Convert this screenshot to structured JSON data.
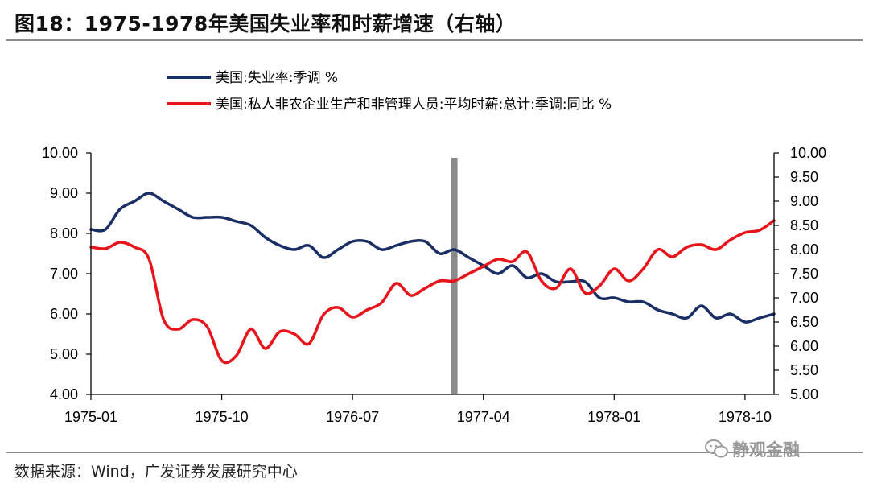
{
  "header": {
    "title": "图18：1975-1978年美国失业率和时薪增速（右轴）"
  },
  "footer": {
    "source": "数据来源：Wind，广发证券发展研究中心",
    "watermark": "静观金融"
  },
  "colors": {
    "unemployment": "#1a2e66",
    "wage": "#e8141b",
    "marker": "#8a8a8a",
    "rule": "#8c8c8c"
  },
  "chart_data": {
    "type": "line",
    "legend_position": "top-left",
    "grid": false,
    "x_tick_labels": [
      "1975-01",
      "1975-10",
      "1976-07",
      "1977-04",
      "1978-01",
      "1978-10"
    ],
    "x_range": [
      "1975-01",
      "1978-12"
    ],
    "y_left": {
      "range": [
        4.0,
        10.0
      ],
      "ticks": [
        "4.00",
        "5.00",
        "6.00",
        "7.00",
        "8.00",
        "9.00",
        "10.00"
      ]
    },
    "y_right": {
      "range": [
        5.0,
        10.0
      ],
      "ticks": [
        "5.00",
        "5.50",
        "6.00",
        "6.50",
        "7.00",
        "7.50",
        "8.00",
        "8.50",
        "9.00",
        "9.50",
        "10.00"
      ]
    },
    "vertical_marker": {
      "x": "1977-02"
    },
    "series": [
      {
        "name": "美国:失业率:季调 %",
        "axis": "left",
        "color": "#1a2e66",
        "points": [
          [
            "1975-01",
            8.1
          ],
          [
            "1975-02",
            8.1
          ],
          [
            "1975-03",
            8.6
          ],
          [
            "1975-04",
            8.8
          ],
          [
            "1975-05",
            9.0
          ],
          [
            "1975-06",
            8.8
          ],
          [
            "1975-07",
            8.6
          ],
          [
            "1975-08",
            8.4
          ],
          [
            "1975-09",
            8.4
          ],
          [
            "1975-10",
            8.4
          ],
          [
            "1975-11",
            8.3
          ],
          [
            "1975-12",
            8.2
          ],
          [
            "1976-01",
            7.9
          ],
          [
            "1976-02",
            7.7
          ],
          [
            "1976-03",
            7.6
          ],
          [
            "1976-04",
            7.7
          ],
          [
            "1976-05",
            7.4
          ],
          [
            "1976-06",
            7.6
          ],
          [
            "1976-07",
            7.8
          ],
          [
            "1976-08",
            7.8
          ],
          [
            "1976-09",
            7.6
          ],
          [
            "1976-10",
            7.7
          ],
          [
            "1976-11",
            7.8
          ],
          [
            "1976-12",
            7.8
          ],
          [
            "1977-01",
            7.5
          ],
          [
            "1977-02",
            7.6
          ],
          [
            "1977-03",
            7.4
          ],
          [
            "1977-04",
            7.2
          ],
          [
            "1977-05",
            7.0
          ],
          [
            "1977-06",
            7.2
          ],
          [
            "1977-07",
            6.9
          ],
          [
            "1977-08",
            7.0
          ],
          [
            "1977-09",
            6.8
          ],
          [
            "1977-10",
            6.8
          ],
          [
            "1977-11",
            6.8
          ],
          [
            "1977-12",
            6.4
          ],
          [
            "1978-01",
            6.4
          ],
          [
            "1978-02",
            6.3
          ],
          [
            "1978-03",
            6.3
          ],
          [
            "1978-04",
            6.1
          ],
          [
            "1978-05",
            6.0
          ],
          [
            "1978-06",
            5.9
          ],
          [
            "1978-07",
            6.2
          ],
          [
            "1978-08",
            5.9
          ],
          [
            "1978-09",
            6.0
          ],
          [
            "1978-10",
            5.8
          ],
          [
            "1978-11",
            5.9
          ],
          [
            "1978-12",
            6.0
          ]
        ]
      },
      {
        "name": "美国:私人非农企业生产和非管理人员:平均时薪:总计:季调:同比 %",
        "axis": "right",
        "color": "#e8141b",
        "points": [
          [
            "1975-01",
            8.05
          ],
          [
            "1975-02",
            8.02
          ],
          [
            "1975-03",
            8.15
          ],
          [
            "1975-04",
            8.05
          ],
          [
            "1975-05",
            7.8
          ],
          [
            "1975-06",
            6.55
          ],
          [
            "1975-07",
            6.35
          ],
          [
            "1975-08",
            6.55
          ],
          [
            "1975-09",
            6.4
          ],
          [
            "1975-10",
            5.7
          ],
          [
            "1975-11",
            5.8
          ],
          [
            "1975-12",
            6.35
          ],
          [
            "1976-01",
            5.95
          ],
          [
            "1976-02",
            6.3
          ],
          [
            "1976-03",
            6.25
          ],
          [
            "1976-04",
            6.05
          ],
          [
            "1976-05",
            6.65
          ],
          [
            "1976-06",
            6.8
          ],
          [
            "1976-07",
            6.6
          ],
          [
            "1976-08",
            6.75
          ],
          [
            "1976-09",
            6.9
          ],
          [
            "1976-10",
            7.3
          ],
          [
            "1976-11",
            7.05
          ],
          [
            "1976-12",
            7.2
          ],
          [
            "1977-01",
            7.35
          ],
          [
            "1977-02",
            7.35
          ],
          [
            "1977-03",
            7.5
          ],
          [
            "1977-04",
            7.65
          ],
          [
            "1977-05",
            7.8
          ],
          [
            "1977-06",
            7.75
          ],
          [
            "1977-07",
            7.95
          ],
          [
            "1977-08",
            7.35
          ],
          [
            "1977-09",
            7.2
          ],
          [
            "1977-10",
            7.6
          ],
          [
            "1977-11",
            7.1
          ],
          [
            "1977-12",
            7.25
          ],
          [
            "1978-01",
            7.6
          ],
          [
            "1978-02",
            7.35
          ],
          [
            "1978-03",
            7.6
          ],
          [
            "1978-04",
            8.0
          ],
          [
            "1978-05",
            7.85
          ],
          [
            "1978-06",
            8.05
          ],
          [
            "1978-07",
            8.1
          ],
          [
            "1978-08",
            8.0
          ],
          [
            "1978-09",
            8.2
          ],
          [
            "1978-10",
            8.35
          ],
          [
            "1978-11",
            8.4
          ],
          [
            "1978-12",
            8.6
          ]
        ]
      }
    ]
  }
}
